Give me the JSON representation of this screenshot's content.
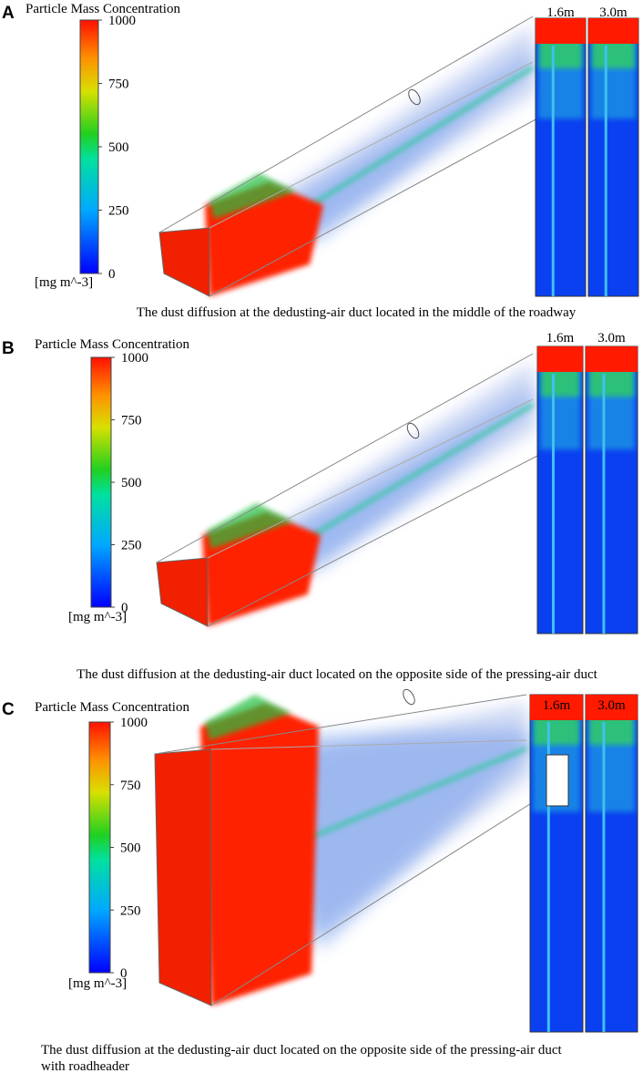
{
  "panels": [
    {
      "label": "A",
      "colorbar": {
        "title": "Particle Mass Concentration",
        "ticks": [
          1000,
          750,
          500,
          250,
          0
        ],
        "unit": "[mg m^-3]"
      },
      "slices": [
        "1.6m",
        "3.0m"
      ],
      "caption": [
        "The dust diffusion at the dedusting-air duct  located in the middle of the roadway"
      ]
    },
    {
      "label": "B",
      "colorbar": {
        "title": "Particle Mass Concentration",
        "ticks": [
          1000,
          750,
          500,
          250,
          0
        ],
        "unit": "[mg m^-3]"
      },
      "slices": [
        "1.6m",
        "3.0m"
      ],
      "caption": [
        "The dust diffusion at the dedusting-air duct  located on the opposite side of the pressing-air duct"
      ]
    },
    {
      "label": "C",
      "colorbar": {
        "title": "Particle Mass Concentration",
        "ticks": [
          1000,
          750,
          500,
          250,
          0
        ],
        "unit": "[mg m^-3]"
      },
      "slices": [
        "1.6m",
        "3.0m"
      ],
      "caption": [
        "The dust diffusion at the dedusting-air duct  located on the opposite side of the pressing-air duct",
        "with roadheader"
      ]
    }
  ]
}
